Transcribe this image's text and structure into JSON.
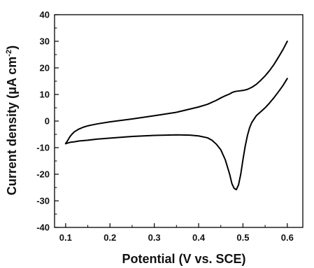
{
  "chart_data": {
    "type": "line",
    "xlabel": "Potential (V vs. SCE)",
    "ylabel_main": "Current density (μA cm",
    "ylabel_sup": "-2",
    "ylabel_end": ")",
    "xlim": [
      0.075,
      0.635
    ],
    "ylim": [
      -40,
      40
    ],
    "x_ticks": [
      0.1,
      0.2,
      0.3,
      0.4,
      0.5,
      0.6
    ],
    "x_tick_labels": [
      "0.1",
      "0.2",
      "0.3",
      "0.4",
      "0.5",
      "0.6"
    ],
    "y_ticks": [
      -40,
      -30,
      -20,
      -10,
      0,
      10,
      20,
      30,
      40
    ],
    "y_tick_labels": [
      "-40",
      "-30",
      "-20",
      "-10",
      "0",
      "10",
      "20",
      "30",
      "40"
    ],
    "grid": false,
    "color": "#000000",
    "series": [
      {
        "x": [
          0.1,
          0.105,
          0.11,
          0.115,
          0.12,
          0.13,
          0.14,
          0.15,
          0.17,
          0.2,
          0.25,
          0.3,
          0.35,
          0.4,
          0.42,
          0.44,
          0.45,
          0.46,
          0.47,
          0.475,
          0.48,
          0.485,
          0.49,
          0.5,
          0.51,
          0.52,
          0.53,
          0.54,
          0.55,
          0.56,
          0.57,
          0.58,
          0.59,
          0.6
        ],
        "y": [
          -8.5,
          -7.2,
          -5.8,
          -4.8,
          -4.0,
          -3.0,
          -2.3,
          -1.8,
          -1.1,
          -0.3,
          0.8,
          2.0,
          3.3,
          5.3,
          6.3,
          7.8,
          8.7,
          9.5,
          10.2,
          10.7,
          11.0,
          11.2,
          11.3,
          11.5,
          11.9,
          12.7,
          13.8,
          15.3,
          17.0,
          19.0,
          21.3,
          24.0,
          26.8,
          30.0
        ]
      },
      {
        "x": [
          0.1,
          0.11,
          0.12,
          0.13,
          0.15,
          0.17,
          0.2,
          0.25,
          0.3,
          0.35,
          0.38,
          0.4,
          0.42,
          0.43,
          0.44,
          0.45,
          0.46,
          0.47,
          0.475,
          0.48,
          0.485,
          0.49,
          0.495,
          0.5,
          0.505,
          0.51,
          0.515,
          0.52,
          0.53,
          0.54,
          0.55,
          0.56,
          0.57,
          0.58,
          0.59,
          0.6
        ],
        "y": [
          -8.5,
          -8.0,
          -7.8,
          -7.5,
          -7.2,
          -6.8,
          -6.4,
          -5.8,
          -5.4,
          -5.2,
          -5.3,
          -5.6,
          -6.3,
          -7.2,
          -8.7,
          -10.8,
          -14.5,
          -20.0,
          -23.5,
          -25.3,
          -25.8,
          -24.0,
          -20.0,
          -14.5,
          -9.5,
          -5.5,
          -2.5,
          -0.5,
          2.0,
          3.5,
          5.0,
          6.8,
          8.8,
          11.0,
          13.3,
          16.0
        ]
      }
    ]
  }
}
